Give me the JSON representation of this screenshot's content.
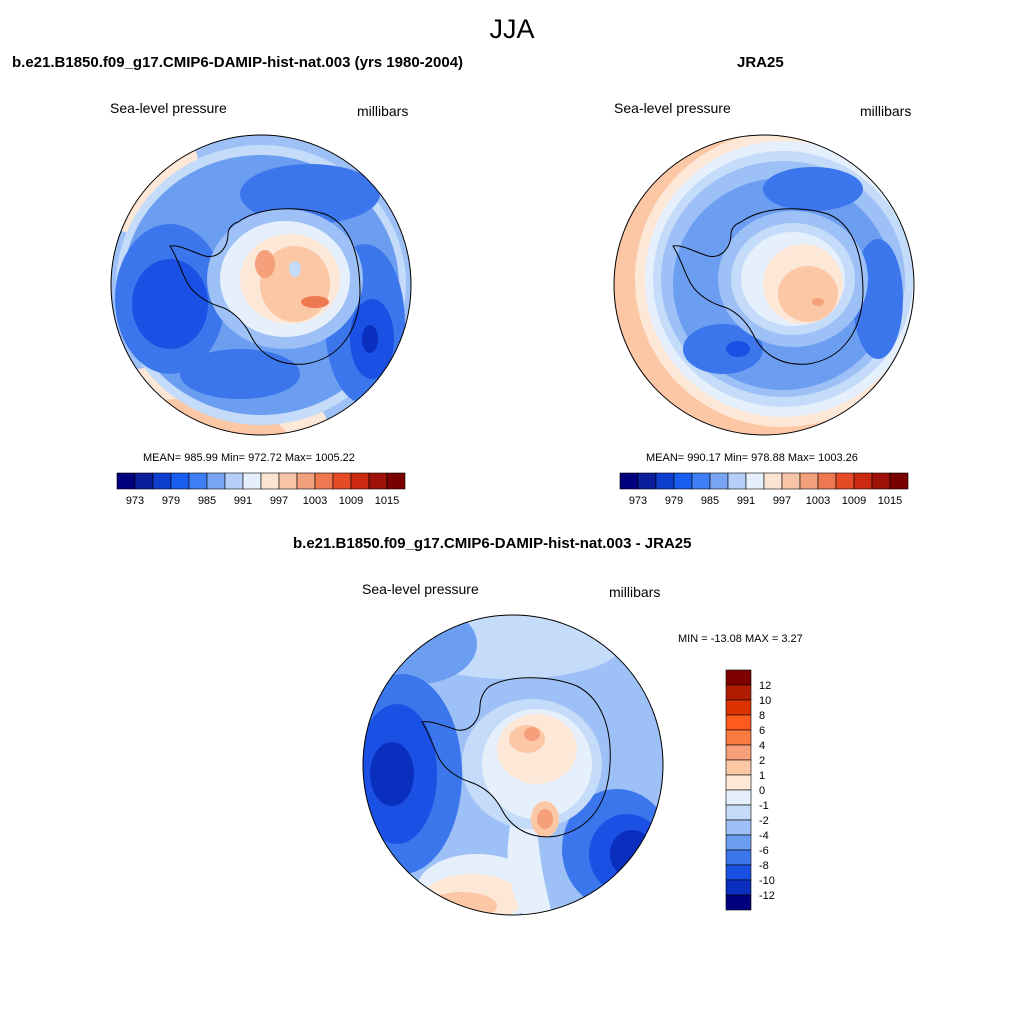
{
  "figure": {
    "title": "JJA"
  },
  "panels": [
    {
      "title": "b.e21.B1850.f09_g17.CMIP6-DAMIP-hist-nat.003 (yrs 1980-2004)",
      "left_label": "Sea-level pressure",
      "right_label": "millibars",
      "stats": "MEAN= 985.99  Min= 972.72  Max= 1005.22"
    },
    {
      "title": "JRA25",
      "left_label": "Sea-level pressure",
      "right_label": "millibars",
      "stats": "MEAN= 990.17  Min= 978.88  Max= 1003.26"
    },
    {
      "title": "b.e21.B1850.f09_g17.CMIP6-DAMIP-hist-nat.003 - JRA25",
      "left_label": "Sea-level pressure",
      "right_label": "millibars",
      "stats": "MIN = -13.08 MAX =   3.27"
    }
  ],
  "colorbars": {
    "absolute": {
      "orientation": "horizontal",
      "tick_labels": [
        "973",
        "979",
        "985",
        "991",
        "997",
        "1003",
        "1009",
        "1015"
      ],
      "colors": [
        "#00007f",
        "#0a1e9c",
        "#0f3fce",
        "#1a5ef0",
        "#3f7ff5",
        "#7aa5f5",
        "#b5cff8",
        "#e6f0fc",
        "#fce3d2",
        "#f8c4a8",
        "#f3a07c",
        "#ee7850",
        "#e64b28",
        "#cc2a10",
        "#a01208",
        "#7a0000"
      ]
    },
    "difference": {
      "orientation": "vertical",
      "tick_labels": [
        "12",
        "10",
        "8",
        "6",
        "4",
        "2",
        "1",
        "0",
        "-1",
        "-2",
        "-4",
        "-6",
        "-8",
        "-10",
        "-12"
      ],
      "colors": [
        "#800000",
        "#b01c00",
        "#dd3300",
        "#ff5a1e",
        "#fa7a44",
        "#f5a07a",
        "#fbc7a5",
        "#fde8d8",
        "#e6f0fc",
        "#c4dbf9",
        "#9dc0f6",
        "#6b9df1",
        "#3b76ec",
        "#1a50e3",
        "#0a2fbf",
        "#00007f"
      ]
    }
  },
  "maps": {
    "projection": "polar-stereographic",
    "hemisphere": "south",
    "continent_outline": "Antarctica",
    "fill_colors": {
      "deep_blue": "#0a2fbf",
      "mid_blue": "#1a50e3",
      "blue": "#3b76ec",
      "light_blue": "#6b9df1",
      "pale_blue": "#9dc0f6",
      "paler_blue": "#c4dbf9",
      "near_white": "#e6f0fc",
      "pale_orange": "#fde8d8",
      "light_orange": "#fbc7a5",
      "orange": "#f5a07a",
      "red_orange": "#ee7850"
    }
  }
}
